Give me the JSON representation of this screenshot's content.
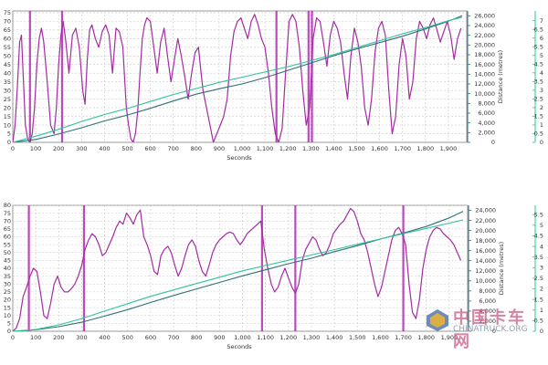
{
  "chart_data": [
    {
      "type": "line",
      "title": "",
      "xlabel": "Seconds",
      "ylabel_left": "",
      "ylabel_right": "Distance (metres)",
      "x_ticks": [
        "0",
        "100",
        "200",
        "300",
        "400",
        "500",
        "600",
        "700",
        "800",
        "900",
        "1,000",
        "1,100",
        "1,200",
        "1,300",
        "1,400",
        "1,500",
        "1,600",
        "1,700",
        "1,800",
        "1,900"
      ],
      "y_left_ticks": [
        "0",
        "5",
        "10",
        "15",
        "20",
        "25",
        "30",
        "35",
        "40",
        "45",
        "50",
        "55",
        "60",
        "65",
        "70",
        "75"
      ],
      "y_right_ticks": [
        "0",
        "2,000",
        "4,000",
        "6,000",
        "8,000",
        "10,000",
        "12,000",
        "14,000",
        "16,000",
        "18,000",
        "20,000",
        "22,000",
        "24,000",
        "26,000"
      ],
      "y_far_ticks": [
        "0",
        "0.5",
        "1",
        "1.5",
        "2",
        "2.5",
        "3",
        "3.5",
        "4",
        "4.5",
        "5",
        "5.5",
        "6",
        "6.5",
        "7"
      ],
      "xlim": [
        0,
        1980
      ],
      "ylim_left": [
        0,
        76
      ],
      "ylim_right": [
        0,
        27000
      ],
      "colors": {
        "speed": "#a32ca3",
        "distance_a": "#2f6f7a",
        "distance_b": "#2fc49a",
        "markers": "#b02cb0"
      },
      "series": [
        {
          "axis": "left",
          "x": [
            0,
            10,
            20,
            30,
            38,
            45,
            55,
            65,
            75,
            85,
            95,
            105,
            115,
            125,
            135,
            150,
            165,
            180,
            190,
            200,
            210,
            220,
            230,
            245,
            260,
            275,
            290,
            305,
            315,
            325,
            335,
            345,
            360,
            375,
            390,
            405,
            420,
            435,
            450,
            465,
            480,
            495,
            505,
            515,
            525,
            535,
            545,
            555,
            565,
            575,
            585,
            600,
            615,
            630,
            645,
            660,
            675,
            690,
            705,
            720,
            735,
            750,
            765,
            780,
            795,
            810,
            820,
            830,
            845,
            860,
            875,
            890,
            905,
            920,
            935,
            950,
            965,
            980,
            995,
            1010,
            1025,
            1040,
            1055,
            1070,
            1085,
            1100,
            1115,
            1130,
            1145,
            1160,
            1175,
            1190,
            1205,
            1220,
            1235,
            1250,
            1265,
            1280,
            1295,
            1310,
            1325,
            1340,
            1355,
            1370,
            1385,
            1400,
            1415,
            1430,
            1445,
            1460,
            1475,
            1490,
            1505,
            1520,
            1535,
            1550,
            1565,
            1580,
            1595,
            1610,
            1625,
            1640,
            1655,
            1670,
            1685,
            1700,
            1715,
            1730,
            1745,
            1760,
            1775,
            1790,
            1805,
            1820,
            1835,
            1850,
            1865,
            1880,
            1895,
            1910,
            1925,
            1940,
            1955
          ],
          "y": [
            0,
            10,
            32,
            58,
            62,
            40,
            10,
            2,
            0,
            5,
            20,
            45,
            60,
            66,
            58,
            35,
            10,
            5,
            20,
            45,
            62,
            70,
            60,
            40,
            62,
            66,
            55,
            30,
            22,
            48,
            65,
            68,
            60,
            55,
            64,
            68,
            62,
            40,
            66,
            64,
            55,
            20,
            10,
            2,
            0,
            5,
            18,
            40,
            60,
            68,
            72,
            70,
            55,
            40,
            58,
            66,
            50,
            35,
            48,
            60,
            50,
            38,
            25,
            40,
            52,
            55,
            42,
            30,
            20,
            10,
            0,
            5,
            10,
            15,
            25,
            50,
            64,
            70,
            72,
            66,
            60,
            70,
            74,
            68,
            60,
            55,
            40,
            20,
            5,
            0,
            8,
            40,
            70,
            74,
            70,
            55,
            30,
            10,
            20,
            60,
            72,
            70,
            58,
            44,
            62,
            70,
            66,
            58,
            40,
            25,
            50,
            66,
            58,
            44,
            20,
            10,
            25,
            52,
            66,
            70,
            62,
            30,
            5,
            15,
            45,
            60,
            50,
            25,
            35,
            60,
            70,
            66,
            60,
            68,
            72,
            65,
            58,
            64,
            70,
            62,
            48,
            60,
            66
          ]
        },
        {
          "axis": "right",
          "x": [
            0,
            100,
            200,
            300,
            400,
            500,
            600,
            700,
            800,
            900,
            1000,
            1100,
            1200,
            1300,
            1400,
            1500,
            1600,
            1700,
            1800,
            1900,
            1960
          ],
          "y": [
            0,
            600,
            1700,
            3000,
            4400,
            5600,
            7000,
            8500,
            9900,
            11000,
            12000,
            13300,
            14800,
            16300,
            17800,
            19200,
            20500,
            21800,
            23300,
            24900,
            26000
          ]
        },
        {
          "axis": "far-right",
          "x": [
            0,
            100,
            200,
            300,
            400,
            500,
            600,
            700,
            800,
            900,
            1000,
            1100,
            1200,
            1300,
            1400,
            1500,
            1600,
            1700,
            1800,
            1900,
            1960
          ],
          "y": [
            0,
            0.35,
            0.75,
            1.2,
            1.6,
            1.95,
            2.35,
            2.75,
            3.1,
            3.45,
            3.75,
            4.05,
            4.35,
            4.7,
            5.05,
            5.45,
            5.85,
            6.25,
            6.6,
            7.0,
            7.2
          ]
        }
      ],
      "markers_x": [
        75,
        215,
        1150,
        1290,
        1305
      ]
    },
    {
      "type": "line",
      "title": "",
      "xlabel": "Seconds",
      "ylabel_left": "",
      "ylabel_right": "Distance (metres)",
      "x_ticks": [
        "0",
        "100",
        "200",
        "300",
        "400",
        "500",
        "600",
        "700",
        "800",
        "900",
        "1,000",
        "1,100",
        "1,200",
        "1,300",
        "1,400",
        "1,500",
        "1,600",
        "1,700",
        "1,800",
        "1,900"
      ],
      "y_left_ticks": [
        "0",
        "5",
        "10",
        "15",
        "20",
        "25",
        "30",
        "35",
        "40",
        "45",
        "50",
        "55",
        "60",
        "65",
        "70",
        "75",
        "80"
      ],
      "y_right_ticks": [
        "0",
        "2,000",
        "4,000",
        "6,000",
        "8,000",
        "10,000",
        "12,000",
        "14,000",
        "16,000",
        "18,000",
        "20,000",
        "22,000",
        "24,000"
      ],
      "y_far_ticks": [
        "0",
        "0.5",
        "1",
        "1.5",
        "2",
        "2.5",
        "3",
        "3.5",
        "4",
        "4.5",
        "5",
        "5.5"
      ],
      "xlim": [
        0,
        1980
      ],
      "ylim_left": [
        0,
        80
      ],
      "ylim_right": [
        0,
        25000
      ],
      "colors": {
        "speed": "#a32ca3",
        "distance_a": "#2f6f7a",
        "distance_b": "#2fc49a",
        "markers": "#b02cb0"
      },
      "series": [
        {
          "axis": "left",
          "x": [
            0,
            15,
            30,
            45,
            60,
            75,
            90,
            105,
            120,
            135,
            150,
            165,
            180,
            195,
            210,
            225,
            240,
            255,
            270,
            285,
            300,
            315,
            330,
            345,
            360,
            375,
            390,
            405,
            420,
            435,
            450,
            465,
            480,
            495,
            510,
            525,
            540,
            555,
            570,
            585,
            600,
            615,
            630,
            645,
            660,
            675,
            690,
            705,
            720,
            735,
            750,
            765,
            780,
            795,
            810,
            825,
            840,
            855,
            870,
            885,
            900,
            915,
            930,
            945,
            960,
            975,
            990,
            1005,
            1020,
            1035,
            1050,
            1065,
            1080,
            1095,
            1110,
            1125,
            1140,
            1155,
            1170,
            1185,
            1200,
            1215,
            1230,
            1245,
            1260,
            1275,
            1290,
            1305,
            1320,
            1335,
            1350,
            1365,
            1380,
            1395,
            1410,
            1425,
            1440,
            1455,
            1470,
            1485,
            1500,
            1515,
            1530,
            1545,
            1560,
            1575,
            1590,
            1605,
            1620,
            1635,
            1650,
            1665,
            1680,
            1695,
            1710,
            1725,
            1740,
            1755,
            1770,
            1785,
            1800,
            1815,
            1830,
            1845,
            1860,
            1875,
            1890,
            1905,
            1920,
            1935,
            1950
          ],
          "y": [
            0,
            2,
            8,
            22,
            28,
            35,
            40,
            38,
            25,
            10,
            8,
            18,
            30,
            35,
            28,
            25,
            25,
            27,
            30,
            35,
            42,
            52,
            58,
            62,
            60,
            55,
            48,
            50,
            55,
            60,
            66,
            70,
            68,
            75,
            72,
            68,
            74,
            77,
            60,
            55,
            48,
            38,
            36,
            48,
            52,
            54,
            50,
            42,
            35,
            40,
            48,
            55,
            58,
            54,
            45,
            38,
            35,
            42,
            50,
            55,
            58,
            60,
            62,
            63,
            62,
            58,
            55,
            58,
            62,
            64,
            66,
            68,
            70,
            52,
            40,
            30,
            25,
            28,
            35,
            40,
            34,
            28,
            24,
            30,
            45,
            52,
            56,
            60,
            58,
            52,
            48,
            50,
            55,
            62,
            65,
            68,
            70,
            74,
            78,
            76,
            70,
            62,
            58,
            50,
            40,
            30,
            22,
            28,
            38,
            48,
            58,
            64,
            66,
            62,
            55,
            30,
            12,
            8,
            20,
            40,
            52,
            60,
            64,
            66,
            65,
            62,
            60,
            58,
            55,
            50,
            45
          ]
        },
        {
          "axis": "right",
          "x": [
            0,
            100,
            200,
            300,
            400,
            500,
            600,
            700,
            800,
            900,
            1000,
            1100,
            1200,
            1300,
            1400,
            1500,
            1600,
            1700,
            1800,
            1900,
            1960
          ],
          "y": [
            0,
            300,
            900,
            1800,
            3000,
            4300,
            5700,
            7100,
            8400,
            9700,
            11000,
            12200,
            13400,
            14500,
            15800,
            17000,
            18300,
            19500,
            20800,
            22500,
            23800
          ]
        },
        {
          "axis": "far-right",
          "x": [
            0,
            100,
            200,
            300,
            400,
            500,
            600,
            700,
            800,
            900,
            1000,
            1100,
            1200,
            1300,
            1400,
            1500,
            1600,
            1700,
            1800,
            1900,
            1960
          ],
          "y": [
            0,
            0.08,
            0.3,
            0.6,
            0.95,
            1.3,
            1.65,
            1.95,
            2.25,
            2.55,
            2.85,
            3.1,
            3.35,
            3.6,
            3.85,
            4.1,
            4.35,
            4.6,
            4.85,
            5.1,
            5.25
          ]
        }
      ],
      "markers_x": [
        70,
        310,
        1085,
        1230,
        1700
      ]
    }
  ],
  "watermark": {
    "text_cn": "中国卡车网",
    "text_en": "CHINATRUCK.ORG",
    "logo_icon": "truck-logo-icon",
    "color_cn": "#c65a86",
    "color_en": "#7b8fa8"
  }
}
